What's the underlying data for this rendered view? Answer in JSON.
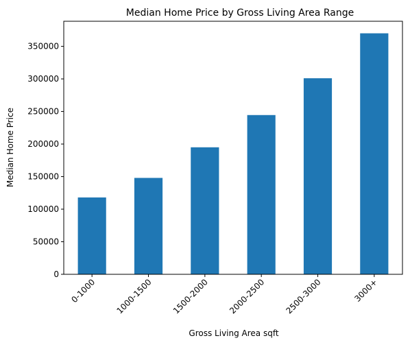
{
  "chart_data": {
    "type": "bar",
    "title": "Median Home Price by Gross Living Area Range",
    "xlabel": "Gross Living Area sqft",
    "ylabel": "Median Home Price",
    "categories": [
      "0-1000",
      "1000-1500",
      "1500-2000",
      "2000-2500",
      "2500-3000",
      "3000+"
    ],
    "values": [
      118000,
      148000,
      195000,
      244500,
      301000,
      370000
    ],
    "ylim": [
      0,
      388500
    ],
    "yticks": [
      0,
      50000,
      100000,
      150000,
      200000,
      250000,
      300000,
      350000
    ],
    "ytick_labels": [
      "0",
      "50000",
      "100000",
      "150000",
      "200000",
      "250000",
      "300000",
      "350000"
    ],
    "bar_color": "#1f77b4",
    "grid": false,
    "legend": "none"
  }
}
